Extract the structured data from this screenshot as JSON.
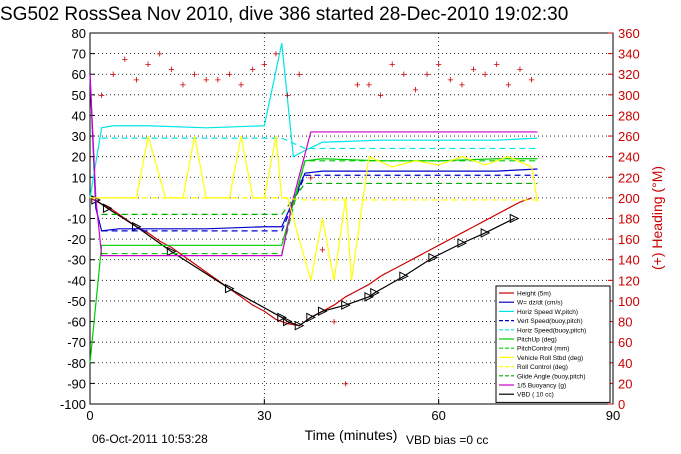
{
  "title": "SG502 RossSea Nov 2010, dive 386 started 28-Dec-2010 19:02:30",
  "footer_timestamp": "06-Oct-2011 10:53:28",
  "footer_bias": "VBD bias =0 cc",
  "chart_data": {
    "type": "line",
    "xlabel": "Time (minutes)",
    "ylabel": "",
    "y2label": "(+) Heading (°M)",
    "xlim": [
      0,
      90
    ],
    "ylim": [
      -100,
      80
    ],
    "y2lim": [
      0,
      360
    ],
    "xticks": [
      0,
      30,
      60,
      90
    ],
    "yticks": [
      80,
      70,
      60,
      50,
      40,
      30,
      20,
      10,
      0,
      -10,
      -20,
      -30,
      -40,
      -50,
      -60,
      -70,
      -80,
      -90,
      -100
    ],
    "y2ticks": [
      360,
      340,
      320,
      300,
      280,
      260,
      240,
      220,
      200,
      180,
      160,
      140,
      120,
      100,
      80,
      60,
      40,
      20,
      0
    ],
    "grid": true,
    "legend_position": "bottom-right",
    "legend": [
      {
        "label": "Height (5m)",
        "color": "#cc0000",
        "style": "solid"
      },
      {
        "label": "W= dz/dt (cm/s)",
        "color": "#0000cc",
        "style": "solid"
      },
      {
        "label": "Horiz Speed W,pitch)",
        "color": "#00e5e5",
        "style": "solid"
      },
      {
        "label": "Vert Speed(buoy,pitch)",
        "color": "#0000cc",
        "style": "dashed"
      },
      {
        "label": "Horiz Speed(buoy,pitch)",
        "color": "#00e5e5",
        "style": "dashed"
      },
      {
        "label": "PitchUp (deg)",
        "color": "#00cc00",
        "style": "solid"
      },
      {
        "label": "PitchControl (mm)",
        "color": "#00cc00",
        "style": "dashed"
      },
      {
        "label": "Vehicle Roll Stbd (deg)",
        "color": "#ffff00",
        "style": "solid"
      },
      {
        "label": "Roll Control (deg)",
        "color": "#ffff00",
        "style": "dashed"
      },
      {
        "label": "Glide Angle (buoy,pitch)",
        "color": "#00aa00",
        "style": "dashed"
      },
      {
        "label": "1/5 Buoyancy (g)",
        "color": "#cc00cc",
        "style": "solid"
      },
      {
        "label": "VBD ( 10 cc)",
        "color": "#000000",
        "style": "solid"
      }
    ],
    "series": [
      {
        "name": "Height (5m)",
        "color": "#cc0000",
        "axis": "left",
        "x": [
          0,
          2,
          4,
          6,
          8,
          10,
          12,
          14,
          16,
          18,
          20,
          22,
          24,
          26,
          28,
          30,
          32,
          34,
          36,
          38,
          40,
          42,
          44,
          46,
          48,
          50,
          52,
          54,
          56,
          58,
          60,
          62,
          64,
          66,
          68,
          70,
          72,
          74,
          76
        ],
        "y": [
          0,
          -3,
          -6,
          -10,
          -14,
          -17,
          -21,
          -24,
          -28,
          -32,
          -36,
          -40,
          -44,
          -48,
          -52,
          -55,
          -59,
          -61,
          -62,
          -58,
          -55,
          -52,
          -48,
          -45,
          -42,
          -38,
          -35,
          -32,
          -29,
          -26,
          -23,
          -20,
          -17,
          -14,
          -11,
          -8,
          -5,
          -2,
          0
        ]
      },
      {
        "name": "VBD ( 10 cc)",
        "color": "#000000",
        "axis": "left",
        "markers": "triangle",
        "x": [
          1,
          3,
          8,
          14,
          24,
          33,
          34,
          36,
          38,
          40,
          44,
          48,
          49,
          54,
          59,
          64,
          68,
          73
        ],
        "y": [
          -1,
          -5,
          -14,
          -26,
          -44,
          -58,
          -60,
          -62,
          -58,
          -55,
          -52,
          -48,
          -46,
          -38,
          -29,
          -22,
          -17,
          -10
        ]
      },
      {
        "name": "W= dz/dt (cm/s)",
        "color": "#0000cc",
        "axis": "left",
        "x": [
          0,
          1,
          2,
          5,
          10,
          20,
          30,
          33,
          37,
          40,
          50,
          60,
          70,
          77
        ],
        "y": [
          60,
          -5,
          -16,
          -15,
          -15,
          -15,
          -14,
          -14,
          12,
          13,
          13,
          13,
          13,
          14
        ]
      },
      {
        "name": "Horiz Speed W,pitch)",
        "color": "#00e5e5",
        "axis": "left",
        "x": [
          0,
          2,
          4,
          10,
          20,
          30,
          33,
          35,
          37,
          40,
          50,
          60,
          70,
          77
        ],
        "y": [
          0,
          34,
          35,
          35,
          34,
          35,
          75,
          20,
          23,
          27,
          28,
          28,
          28,
          29
        ]
      },
      {
        "name": "Vert Speed(buoy,pitch)",
        "color": "#0000cc",
        "axis": "left",
        "dashed": true,
        "x": [
          2,
          33,
          37,
          77
        ],
        "y": [
          -16,
          -16,
          11,
          11
        ]
      },
      {
        "name": "Horiz Speed(buoy,pitch)",
        "color": "#00e5e5",
        "axis": "left",
        "dashed": true,
        "x": [
          2,
          33,
          37,
          77
        ],
        "y": [
          29,
          29,
          24,
          24
        ]
      },
      {
        "name": "PitchUp (deg)",
        "color": "#00cc00",
        "axis": "left",
        "x": [
          0,
          2,
          10,
          20,
          33,
          37,
          40,
          50,
          60,
          70,
          77
        ],
        "y": [
          -80,
          -23,
          -23,
          -23,
          -23,
          18,
          19,
          18,
          18,
          19,
          19
        ]
      },
      {
        "name": "PitchControl (mm)",
        "color": "#00cc00",
        "axis": "left",
        "dashed": true,
        "x": [
          2,
          33,
          37,
          77
        ],
        "y": [
          -27,
          -27,
          18,
          18
        ]
      },
      {
        "name": "Glide Angle (buoy,pitch)",
        "color": "#00aa00",
        "axis": "left",
        "dashed": true,
        "x": [
          2,
          33,
          37,
          77
        ],
        "y": [
          -8,
          -8,
          7,
          7
        ]
      },
      {
        "name": "1/5 Buoyancy (g)",
        "color": "#cc00cc",
        "axis": "left",
        "x": [
          0,
          1,
          2,
          33,
          35,
          38,
          50,
          60,
          77
        ],
        "y": [
          60,
          0,
          -28,
          -28,
          0,
          32,
          32,
          32,
          32
        ]
      },
      {
        "name": "Vehicle Roll Stbd (deg)",
        "color": "#ffff00",
        "axis": "left",
        "x": [
          0,
          2,
          5,
          8,
          10,
          13,
          16,
          18,
          20,
          24,
          26,
          28,
          30,
          32,
          33,
          34,
          36,
          38,
          40,
          42,
          44,
          45,
          48,
          52,
          56,
          60,
          64,
          68,
          72,
          76,
          77
        ],
        "y": [
          0,
          0,
          0,
          0,
          30,
          0,
          0,
          30,
          0,
          0,
          30,
          0,
          0,
          30,
          0,
          0,
          -20,
          -40,
          -10,
          -40,
          0,
          -40,
          20,
          15,
          18,
          16,
          20,
          16,
          20,
          15,
          -2
        ]
      },
      {
        "name": "Roll Control (deg)",
        "color": "#ffff00",
        "axis": "left",
        "dashed": true,
        "x": [
          2,
          33,
          37,
          77
        ],
        "y": [
          0,
          0,
          -1,
          -1
        ]
      },
      {
        "name": "(+) Heading (°M)",
        "color": "#cc0000",
        "axis": "right",
        "style": "markers",
        "x": [
          2,
          4,
          6,
          8,
          10,
          12,
          14,
          16,
          18,
          20,
          22,
          24,
          26,
          28,
          30,
          32,
          34,
          36,
          38,
          40,
          42,
          44,
          46,
          48,
          50,
          52,
          54,
          56,
          58,
          60,
          62,
          64,
          66,
          68,
          70,
          72,
          74,
          76
        ],
        "y": [
          300,
          320,
          335,
          315,
          330,
          340,
          325,
          310,
          320,
          315,
          315,
          320,
          310,
          325,
          330,
          340,
          300,
          320,
          220,
          150,
          80,
          20,
          310,
          310,
          300,
          330,
          320,
          305,
          320,
          330,
          315,
          310,
          325,
          320,
          330,
          310,
          325,
          315
        ]
      }
    ]
  }
}
